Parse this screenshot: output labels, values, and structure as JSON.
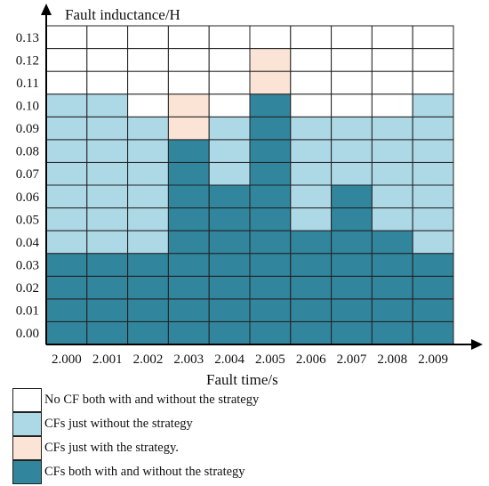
{
  "chart_data": {
    "type": "heatmap",
    "title": "",
    "xlabel": "Fault time/s",
    "ylabel": "Fault inductance/H",
    "x_categories": [
      "2.000",
      "2.001",
      "2.002",
      "2.003",
      "2.004",
      "2.005",
      "2.006",
      "2.007",
      "2.008",
      "2.009"
    ],
    "y_categories": [
      "0.00",
      "0.01",
      "0.02",
      "0.03",
      "0.04",
      "0.05",
      "0.06",
      "0.07",
      "0.08",
      "0.09",
      "0.10",
      "0.11",
      "0.12",
      "0.13"
    ],
    "states": [
      {
        "code": 0,
        "label": "No CF both with and without the strategy",
        "color": "#ffffff"
      },
      {
        "code": 1,
        "label": "CFs just without the strategy",
        "color": "#add8e6"
      },
      {
        "code": 2,
        "label": "CFs just with the strategy.",
        "color": "#fbe4d5"
      },
      {
        "code": 3,
        "label": "CFs both with and without the strategy",
        "color": "#31859c"
      }
    ],
    "grid": [
      [
        3,
        3,
        3,
        3,
        3,
        3,
        3,
        3,
        3,
        3
      ],
      [
        3,
        3,
        3,
        3,
        3,
        3,
        3,
        3,
        3,
        3
      ],
      [
        3,
        3,
        3,
        3,
        3,
        3,
        3,
        3,
        3,
        3
      ],
      [
        3,
        3,
        3,
        3,
        3,
        3,
        3,
        3,
        3,
        3
      ],
      [
        1,
        1,
        1,
        3,
        3,
        3,
        3,
        3,
        3,
        1
      ],
      [
        1,
        1,
        1,
        3,
        3,
        3,
        1,
        3,
        1,
        1
      ],
      [
        1,
        1,
        1,
        3,
        3,
        3,
        1,
        3,
        1,
        1
      ],
      [
        1,
        1,
        1,
        3,
        1,
        3,
        1,
        1,
        1,
        1
      ],
      [
        1,
        1,
        1,
        3,
        1,
        3,
        1,
        1,
        1,
        1
      ],
      [
        1,
        1,
        1,
        2,
        1,
        3,
        1,
        1,
        1,
        1
      ],
      [
        1,
        1,
        0,
        2,
        0,
        3,
        0,
        0,
        0,
        1
      ],
      [
        0,
        0,
        0,
        0,
        0,
        2,
        0,
        0,
        0,
        0
      ],
      [
        0,
        0,
        0,
        0,
        0,
        2,
        0,
        0,
        0,
        0
      ],
      [
        0,
        0,
        0,
        0,
        0,
        0,
        0,
        0,
        0,
        0
      ]
    ],
    "grid_lines": true,
    "legend_position": "bottom-left"
  }
}
